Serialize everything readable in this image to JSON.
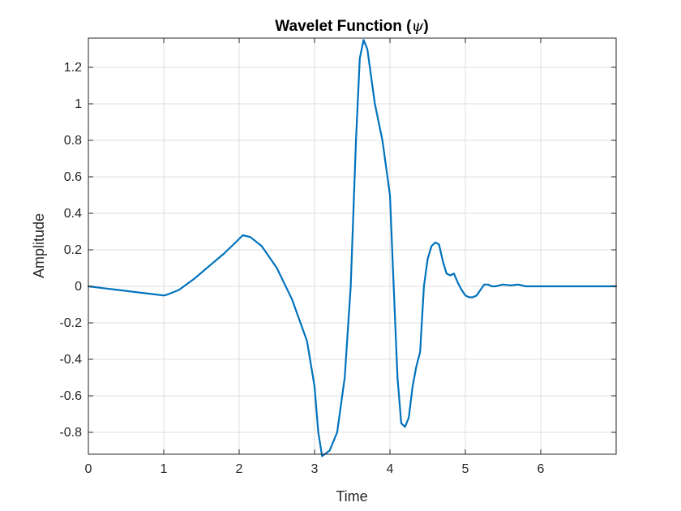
{
  "chart_data": {
    "type": "line",
    "title": "Wavelet Function (",
    "title_symbol": "ψ",
    "title_suffix": ")",
    "xlabel": "Time",
    "ylabel": "Amplitude",
    "xlim": [
      0,
      7
    ],
    "ylim": [
      -0.92,
      1.36
    ],
    "xticks": [
      0,
      1,
      2,
      3,
      4,
      5,
      6
    ],
    "yticks": [
      -0.8,
      -0.6,
      -0.4,
      -0.2,
      0,
      0.2,
      0.4,
      0.6,
      0.8,
      1,
      1.2
    ],
    "ytick_labels": [
      "-0.8",
      "-0.6",
      "-0.4",
      "-0.2",
      "0",
      "0.2",
      "0.4",
      "0.6",
      "0.8",
      "1",
      "1.2"
    ],
    "grid": true,
    "line_color": "#0072BD",
    "series": [
      {
        "x": [
          0,
          0.2,
          0.4,
          0.6,
          0.8,
          1.0,
          1.05,
          1.2,
          1.4,
          1.6,
          1.8,
          1.95,
          2.05,
          2.15,
          2.3,
          2.5,
          2.7,
          2.9,
          3.0,
          3.05,
          3.1,
          3.2,
          3.3,
          3.4,
          3.48,
          3.55,
          3.6,
          3.65,
          3.7,
          3.8,
          3.9,
          4.0,
          4.05,
          4.1,
          4.15,
          4.2,
          4.25,
          4.3,
          4.35,
          4.4,
          4.45,
          4.5,
          4.55,
          4.6,
          4.65,
          4.7,
          4.75,
          4.8,
          4.85,
          4.9,
          4.95,
          5.0,
          5.05,
          5.1,
          5.15,
          5.2,
          5.25,
          5.3,
          5.35,
          5.4,
          5.5,
          5.6,
          5.7,
          5.8,
          6.0,
          6.5,
          7.0
        ],
        "y": [
          0,
          -0.01,
          -0.02,
          -0.03,
          -0.04,
          -0.05,
          -0.045,
          -0.02,
          0.04,
          0.11,
          0.18,
          0.24,
          0.28,
          0.27,
          0.22,
          0.1,
          -0.07,
          -0.3,
          -0.55,
          -0.8,
          -0.93,
          -0.9,
          -0.8,
          -0.5,
          0.0,
          0.8,
          1.25,
          1.35,
          1.3,
          1.0,
          0.8,
          0.5,
          0.0,
          -0.5,
          -0.75,
          -0.77,
          -0.72,
          -0.55,
          -0.44,
          -0.36,
          0.0,
          0.15,
          0.22,
          0.24,
          0.23,
          0.14,
          0.07,
          0.06,
          0.07,
          0.02,
          -0.02,
          -0.05,
          -0.06,
          -0.06,
          -0.05,
          -0.02,
          0.01,
          0.01,
          0.0,
          0.0,
          0.01,
          0.005,
          0.01,
          0.0,
          0.0,
          0.0,
          0.0
        ]
      }
    ]
  }
}
